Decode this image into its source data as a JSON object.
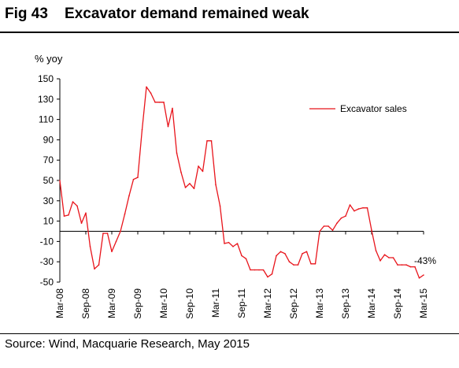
{
  "figure": {
    "number": "Fig 43",
    "title": "Excavator demand remained weak",
    "source": "Source: Wind, Macquarie Research, May 2015"
  },
  "chart_data": {
    "type": "line",
    "title": "Excavator demand remained weak",
    "ylabel": "% yoy",
    "xlabel": "",
    "ylim": [
      -50,
      150
    ],
    "yticks": [
      150,
      130,
      110,
      90,
      70,
      50,
      30,
      10,
      -10,
      -30,
      -50
    ],
    "xtick_labels": [
      "Mar-08",
      "Sep-08",
      "Mar-09",
      "Sep-09",
      "Mar-10",
      "Sep-10",
      "Mar-11",
      "Sep-11",
      "Mar-12",
      "Sep-12",
      "Mar-13",
      "Sep-13",
      "Mar-14",
      "Sep-14",
      "Mar-15"
    ],
    "xtick_step": 6,
    "legend": "right",
    "annotation": {
      "text": "-43%",
      "point_index": 84
    },
    "colors": {
      "series": "#e8141b",
      "axis": "#000000"
    },
    "series": [
      {
        "name": "Excavator sales",
        "values": [
          50,
          15,
          16,
          29,
          25,
          8,
          18,
          -15,
          -37,
          -33,
          -2,
          -2,
          -20,
          -10,
          0,
          17,
          35,
          51,
          53,
          100,
          142,
          136,
          127,
          127,
          127,
          103,
          121,
          77,
          58,
          43,
          47,
          42,
          64,
          59,
          89,
          89,
          46,
          25,
          -12,
          -11,
          -15,
          -12,
          -24,
          -27,
          -38,
          -38,
          -38,
          -38,
          -45,
          -42,
          -24,
          -20,
          -22,
          -30,
          -33,
          -33,
          -22,
          -20,
          -32,
          -32,
          0,
          5,
          5,
          1,
          8,
          13,
          15,
          26,
          20,
          22,
          23,
          23,
          1,
          -19,
          -29,
          -23,
          -26,
          -26,
          -33,
          -33,
          -33,
          -35,
          -35,
          -46,
          -43
        ]
      }
    ]
  }
}
